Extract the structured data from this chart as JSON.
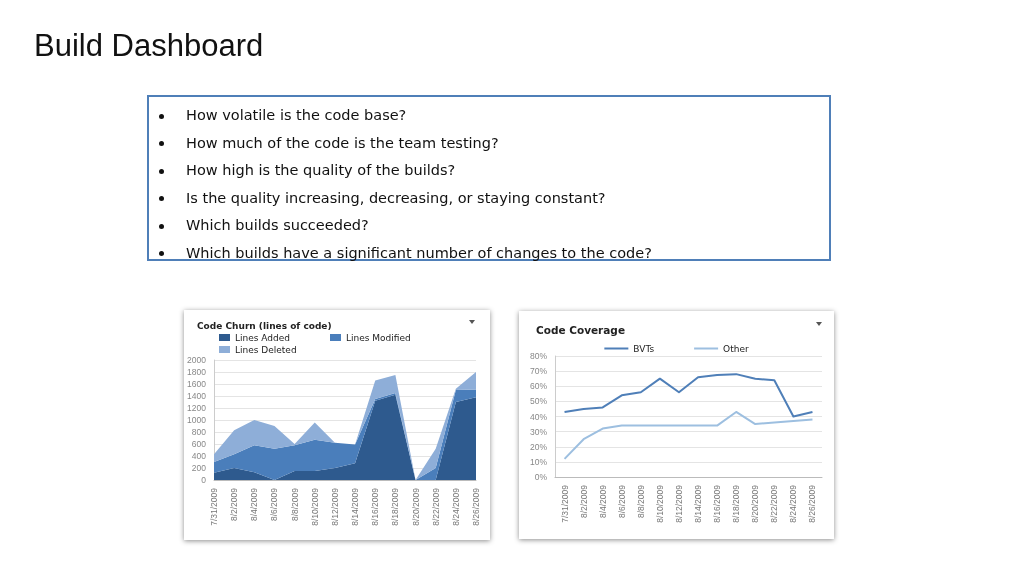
{
  "chart_data": [
    {
      "type": "other",
      "title": "Build Dashboard",
      "annotations": [
        "How volatile is the code base?",
        "How much of the code is the team testing?",
        "How high is the quality of the builds?",
        "Is the quality increasing, decreasing, or staying constant?",
        "Which builds succeeded?",
        "Which builds have a significant number of changes to the code?"
      ]
    },
    {
      "type": "area",
      "title": "Code Churn (lines of code)",
      "stacked": true,
      "legend": "top left",
      "grid": "y",
      "categories": [
        "7/31/2009",
        "8/2/2009",
        "8/4/2009",
        "8/6/2009",
        "8/8/2009",
        "8/10/2009",
        "8/12/2009",
        "8/14/2009",
        "8/16/2009",
        "8/18/2009",
        "8/20/2009",
        "8/22/2009",
        "8/24/2009",
        "8/26/2009"
      ],
      "series": [
        {
          "name": "Lines Added",
          "color": "#2e5a8e",
          "values": [
            120,
            200,
            130,
            0,
            150,
            150,
            200,
            280,
            1320,
            1420,
            0,
            0,
            1300,
            1380
          ]
        },
        {
          "name": "Lines Modified",
          "color": "#4a7ebb",
          "values": [
            180,
            230,
            450,
            520,
            430,
            520,
            420,
            310,
            30,
            30,
            0,
            200,
            200,
            130
          ]
        },
        {
          "name": "Lines Deleted",
          "color": "#8eaed8",
          "values": [
            130,
            400,
            420,
            380,
            20,
            290,
            0,
            0,
            310,
            300,
            0,
            320,
            20,
            290
          ]
        }
      ],
      "ylim": [
        0,
        2000
      ],
      "yticks": [
        0,
        200,
        400,
        600,
        800,
        1000,
        1200,
        1400,
        1600,
        1800,
        2000
      ]
    },
    {
      "type": "line",
      "title": "Code Coverage",
      "legend": "top",
      "grid": "y",
      "marker": "none",
      "categories": [
        "7/31/2009",
        "8/2/2009",
        "8/4/2009",
        "8/6/2009",
        "8/8/2009",
        "8/10/2009",
        "8/12/2009",
        "8/14/2009",
        "8/16/2009",
        "8/18/2009",
        "8/20/2009",
        "8/22/2009",
        "8/24/2009",
        "8/26/2009"
      ],
      "series": [
        {
          "name": "BVTs",
          "color": "#4f7fb8",
          "values": [
            43,
            45,
            46,
            54,
            56,
            65,
            56,
            66,
            67.5,
            68,
            65,
            64,
            40,
            43
          ]
        },
        {
          "name": "Other",
          "color": "#9dbfe0",
          "values": [
            12,
            25,
            32,
            34,
            34,
            34,
            34,
            34,
            34,
            43,
            35,
            36,
            37,
            38
          ]
        }
      ],
      "ylim": [
        0,
        80
      ],
      "yticks": [
        {
          "value": 0,
          "label": "0%"
        },
        {
          "value": 10,
          "label": "10%"
        },
        {
          "value": 20,
          "label": "20%"
        },
        {
          "value": 30,
          "label": "30%"
        },
        {
          "value": 40,
          "label": "40%"
        },
        {
          "value": 50,
          "label": "50%"
        },
        {
          "value": 60,
          "label": "60%"
        },
        {
          "value": 70,
          "label": "70%"
        },
        {
          "value": 80,
          "label": "80%"
        }
      ]
    }
  ]
}
